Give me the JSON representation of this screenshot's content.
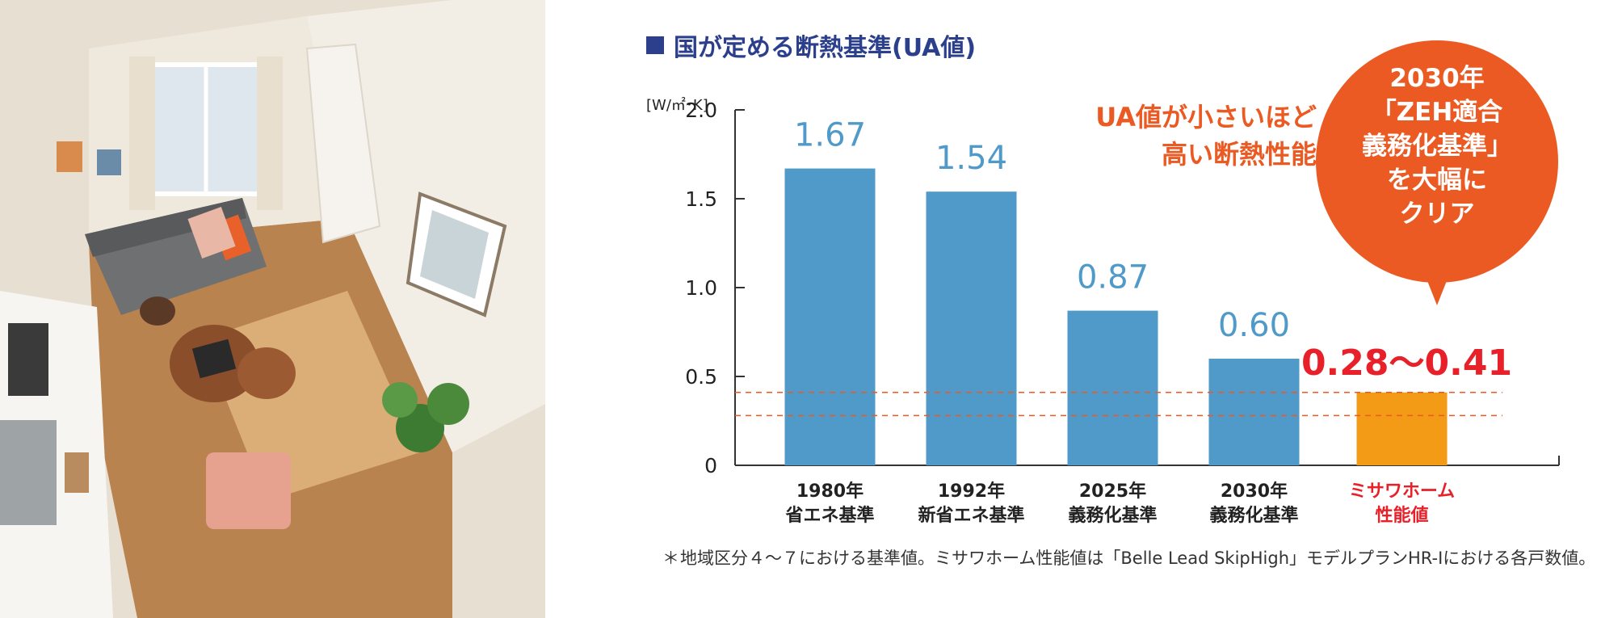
{
  "section_title": "国が定める断熱基準(UA値)",
  "annotation": [
    "UA値が小さいほど",
    "高い断熱性能"
  ],
  "callout": [
    "2030年",
    "「ZEH適合",
    "義務化基準」",
    "を大幅に",
    "クリア"
  ],
  "footnote": {
    "mark": "＊",
    "text": "地域区分４～７における基準値。ミサワホーム性能値は「Belle Lead SkipHigh」モデルプランHR-Iにおける各戸数値。"
  },
  "colors": {
    "bar": "#4f9ac8",
    "highlight_bar": "#f39a16",
    "accent_orange": "#ea5a22",
    "value_red": "#e8202a",
    "title_navy": "#2b3f8c"
  },
  "chart_data": {
    "type": "bar",
    "unit_label": "[W/㎡･K]",
    "ylim": [
      0,
      2.0
    ],
    "yticks": [
      "2.0",
      "1.5",
      "1.0",
      "0.5",
      "0"
    ],
    "ytick_values": [
      2.0,
      1.5,
      1.0,
      0.5,
      0
    ],
    "bars": [
      {
        "label_lines": [
          "1980年",
          "省エネ基準"
        ],
        "value": 1.67,
        "value_label": "1.67",
        "highlight": false
      },
      {
        "label_lines": [
          "1992年",
          "新省エネ基準"
        ],
        "value": 1.54,
        "value_label": "1.54",
        "highlight": false
      },
      {
        "label_lines": [
          "2025年",
          "義務化基準"
        ],
        "value": 0.87,
        "value_label": "0.87",
        "highlight": false
      },
      {
        "label_lines": [
          "2030年",
          "義務化基準"
        ],
        "value": 0.6,
        "value_label": "0.60",
        "highlight": false
      },
      {
        "label_lines": [
          "ミサワホーム",
          "性能値"
        ],
        "value": 0.41,
        "value_label": "0.28～0.41",
        "range_low": 0.28,
        "highlight": true
      }
    ],
    "reference_lines": [
      0.41,
      0.28
    ],
    "grid": false
  }
}
